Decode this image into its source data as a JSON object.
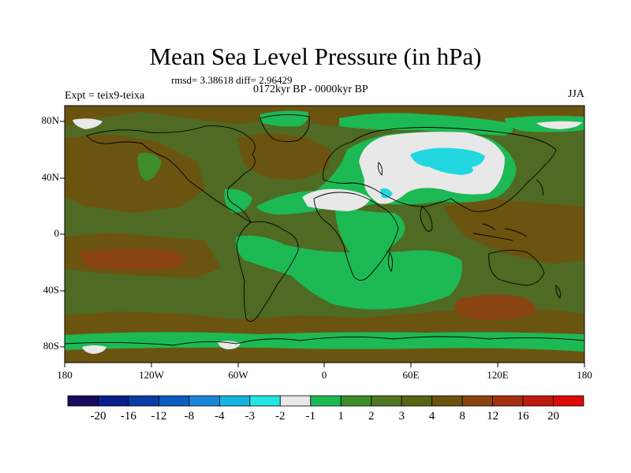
{
  "title": "Mean Sea Level Pressure (in hPa)",
  "stats_text": "rmsd= 3.38618 diff= 2.96429",
  "period": "0172kyr BP - 0000kyr BP",
  "experiment": "Expt = teix9-teixa",
  "season": "JJA",
  "lat_labels": [
    "80N",
    "40N",
    "0",
    "40S",
    "80S"
  ],
  "lon_labels": [
    "180",
    "120W",
    "60W",
    "0",
    "60E",
    "120E",
    "180"
  ],
  "colorbar": {
    "colors": [
      "#1a0a5e",
      "#0a1e8c",
      "#0a3ca6",
      "#0d5cc0",
      "#1d86d8",
      "#15b4e0",
      "#22e6e6",
      "#e8e8e8",
      "#1db954",
      "#3f8c2a",
      "#4f7622",
      "#5a6412",
      "#6b5410",
      "#8a4410",
      "#a43012",
      "#c01a10",
      "#dc0b0a"
    ],
    "labels": [
      "-20",
      "-16",
      "-12",
      "-8",
      "-4",
      "-3",
      "-2",
      "-1",
      "1",
      "2",
      "3",
      "4",
      "8",
      "12",
      "16",
      "20"
    ]
  },
  "map_colors": {
    "base": "#4f6a22",
    "brown": "#6b5410",
    "darkbrown": "#7a4a12",
    "rust": "#8a4410",
    "green": "#1db954",
    "midgreen": "#3f8c2a",
    "white": "#e8e8e8",
    "cyan": "#22d8e0",
    "coast": "#000000"
  }
}
